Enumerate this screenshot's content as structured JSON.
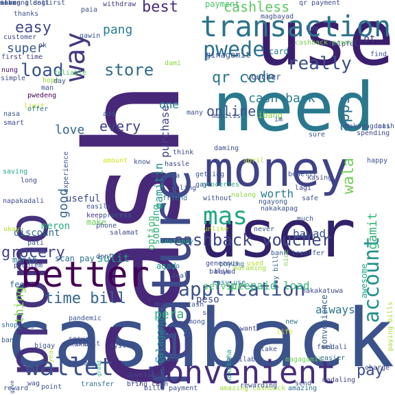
{
  "words": [
    {
      "t": "cashback",
      "c": "#3b528b"
    },
    {
      "t": "cash",
      "c": "#482878"
    },
    {
      "t": "use",
      "c": "#3b1e6e"
    },
    {
      "t": "need",
      "c": "#2a788e"
    },
    {
      "t": "money",
      "c": "#404387"
    },
    {
      "t": "user",
      "c": "#31206a"
    },
    {
      "t": "feature",
      "c": "#3e4a89"
    },
    {
      "t": "promo",
      "c": "#46327e"
    },
    {
      "t": "mas",
      "c": "#22a884"
    },
    {
      "t": "transaction",
      "c": "#2c728e"
    },
    {
      "t": "better",
      "c": "#440154"
    },
    {
      "t": "convenient",
      "c": "#472d7b"
    },
    {
      "t": "wallet",
      "c": "#3b528b"
    },
    {
      "t": "account",
      "c": "#21918c"
    },
    {
      "t": "application",
      "c": "#3b518b"
    },
    {
      "t": "cashback voucher",
      "c": "#3f4788"
    },
    {
      "t": "pwede",
      "c": "#2d708e"
    },
    {
      "t": "way",
      "c": "#453781"
    },
    {
      "t": "load",
      "c": "#3a538b"
    },
    {
      "t": "store",
      "c": "#306a8e"
    },
    {
      "t": "qr code",
      "c": "#2a768e"
    },
    {
      "t": "online",
      "c": "#3c508b"
    },
    {
      "t": "cash back",
      "c": "#297b8e"
    },
    {
      "t": "really",
      "c": "#3d4e8a"
    },
    {
      "t": "time bill",
      "c": "#33638d"
    },
    {
      "t": "grocery",
      "c": "#404688"
    },
    {
      "t": "every",
      "c": "#414487"
    },
    {
      "t": "best",
      "c": "#472c7a"
    },
    {
      "t": "easy",
      "c": "#3f4889"
    },
    {
      "t": "super",
      "c": "#39568c"
    },
    {
      "t": "pang",
      "c": "#287d8e"
    },
    {
      "t": "cashless",
      "c": "#5ec962"
    },
    {
      "t": "love",
      "c": "#32648e"
    },
    {
      "t": "good",
      "c": "#32658e"
    },
    {
      "t": "wala",
      "c": "#70cf57"
    },
    {
      "t": "apps",
      "c": "#2e6f8e"
    },
    {
      "t": "gamitin",
      "c": "#20928c"
    },
    {
      "t": "purchase",
      "c": "#404588"
    },
    {
      "t": "sobrang",
      "c": "#2ab07f"
    },
    {
      "t": "pera",
      "c": "#2fb47c"
    },
    {
      "t": "one",
      "c": "#26828e"
    },
    {
      "t": "worth",
      "c": "#287c8e"
    },
    {
      "t": "gamit",
      "c": "#31b57b"
    },
    {
      "t": "sulit",
      "c": "#1fa088"
    },
    {
      "t": "option",
      "c": "#40bd72"
    },
    {
      "t": "useful",
      "c": "#3e4c8a"
    },
    {
      "t": "thing",
      "c": "#7fd34e"
    },
    {
      "t": "discount",
      "c": "#31678e"
    },
    {
      "t": "meron",
      "c": "#29af7f"
    },
    {
      "t": "month",
      "c": "#2b758e"
    },
    {
      "t": "scan pay",
      "c": "#2e6e8e"
    },
    {
      "t": "fee",
      "c": "#31668e"
    },
    {
      "t": "agad",
      "c": "#1f9a8a"
    },
    {
      "t": "prepaid load",
      "c": "#35b779"
    },
    {
      "t": "always",
      "c": "#2c738e"
    },
    {
      "t": "pay",
      "c": "#3e4989"
    },
    {
      "t": "peso",
      "c": "#3f4889"
    },
    {
      "t": "talagang",
      "c": "#23888e"
    },
    {
      "t": "convenience",
      "c": "#355f8d"
    },
    {
      "t": "bayad",
      "c": "#3b528b"
    },
    {
      "t": "awesome",
      "c": "#20a486"
    },
    {
      "t": "paying bills",
      "c": "#a8db34"
    },
    {
      "t": "service",
      "c": "#52c569"
    },
    {
      "t": "ibang",
      "c": "#8bd646"
    },
    {
      "t": "card",
      "c": "#287c8e"
    },
    {
      "t": "voucher",
      "c": "#3e4989"
    },
    {
      "t": "ginagamit",
      "c": "#39568c"
    },
    {
      "t": "lot",
      "c": "#472f7d"
    },
    {
      "t": "payment",
      "c": "#4ac16d"
    },
    {
      "t": "qr payment",
      "c": "#3e4a89"
    },
    {
      "t": "withdraw",
      "c": "#453882"
    },
    {
      "t": "thanks",
      "c": "#3c4f8a"
    },
    {
      "t": "ok",
      "c": "#404387"
    },
    {
      "t": "dami",
      "c": "#8bd646"
    },
    {
      "t": "first time",
      "c": "#453882"
    },
    {
      "t": "nung",
      "c": "#471063"
    },
    {
      "t": "hope",
      "c": "#93d741"
    },
    {
      "t": "man",
      "c": "#3d4d8a"
    },
    {
      "t": "pwedeng",
      "c": "#440154"
    },
    {
      "t": "limit",
      "c": "#bddf26"
    },
    {
      "t": "offer",
      "c": "#2e6d8e"
    },
    {
      "t": "experience",
      "c": "#3b528b"
    },
    {
      "t": "saving",
      "c": "#20a386"
    },
    {
      "t": "long",
      "c": "#3e4a89"
    },
    {
      "t": "napakadali",
      "c": "#3d4e8a"
    },
    {
      "t": "instapay",
      "c": "#26ad81"
    },
    {
      "t": "make",
      "c": "#6ccd5a"
    },
    {
      "t": "keep",
      "c": "#463480"
    },
    {
      "t": "easily",
      "c": "#3b528b"
    },
    {
      "t": "process",
      "c": "#33638d"
    },
    {
      "t": "friend",
      "c": "#2d718e"
    },
    {
      "t": "without",
      "c": "#3d4e8a"
    },
    {
      "t": "nalang",
      "c": "#90d743"
    },
    {
      "t": "unlike",
      "c": "#b2dd2d"
    },
    {
      "t": "much",
      "c": "#3c508b"
    },
    {
      "t": "safe",
      "c": "#3d4d8a"
    },
    {
      "t": "lagi",
      "c": "#424186"
    },
    {
      "t": "bank transfer",
      "c": "#39568c"
    },
    {
      "t": "paying",
      "c": "#2d708e"
    },
    {
      "t": "go",
      "c": "#2c728e"
    },
    {
      "t": "deal",
      "c": "#3b528b"
    },
    {
      "t": "bayad",
      "c": "#3e4a89"
    },
    {
      "t": "balik",
      "c": "#3f4788"
    },
    {
      "t": "pay bill",
      "c": "#32648e"
    },
    {
      "t": "nice",
      "c": "#7ad151"
    },
    {
      "t": "easy use",
      "c": "#2a788e"
    },
    {
      "t": "problem",
      "c": "#3e4a89"
    },
    {
      "t": "shopping",
      "c": "#2e6f8e"
    },
    {
      "t": "bank",
      "c": "#38588c"
    },
    {
      "t": "year",
      "c": "#b5de2b"
    },
    {
      "t": "want",
      "c": "#424186"
    },
    {
      "t": "life",
      "c": "#d8e219"
    },
    {
      "t": "new",
      "c": "#2c728e"
    },
    {
      "t": "take",
      "c": "#3b528b"
    },
    {
      "t": "feel",
      "c": "#3d4d8a"
    },
    {
      "t": "easier",
      "c": "#31678e"
    },
    {
      "t": "charge",
      "c": "#3f4889"
    },
    {
      "t": "makukuha",
      "c": "#3e4989"
    },
    {
      "t": "ginamit",
      "c": "#3d4e8a"
    },
    {
      "t": "makapag cash",
      "c": "#3b528b"
    },
    {
      "t": "rebate",
      "c": "#31678e"
    },
    {
      "t": "available",
      "c": "#3d4e8a"
    },
    {
      "t": "magagamit",
      "c": "#6ece58"
    },
    {
      "t": "madali",
      "c": "#3b528b"
    },
    {
      "t": "madaling",
      "c": "#424186"
    },
    {
      "t": "wag",
      "c": "#3e4a89"
    },
    {
      "t": "transfer",
      "c": "#2d708e"
    },
    {
      "t": "bring cash",
      "c": "#424186"
    },
    {
      "t": "download",
      "c": "#3e4989"
    },
    {
      "t": "try",
      "c": "#3d4e8a"
    },
    {
      "t": "reward",
      "c": "#3b528b"
    },
    {
      "t": "give",
      "c": "#3b528b"
    },
    {
      "t": "bills payment",
      "c": "#3e4a89"
    },
    {
      "t": "amazing cashback",
      "c": "#9fda3a"
    },
    {
      "t": "rewarding",
      "c": "#3e4a89"
    },
    {
      "t": "amazing",
      "c": "#2e6e8e"
    },
    {
      "t": "send",
      "c": "#3b528b"
    },
    {
      "t": "nakakuha",
      "c": "#1f9e89"
    },
    {
      "t": "great",
      "c": "#24aa83"
    },
    {
      "t": "credit",
      "c": "#3b528b"
    },
    {
      "t": "secure",
      "c": "#3f4788"
    },
    {
      "t": "mong",
      "c": "#3b528b"
    },
    {
      "t": "say",
      "c": "#3e4a89"
    },
    {
      "t": "maraming",
      "c": "#a0da39"
    },
    {
      "t": "generous",
      "c": "#3f4889"
    },
    {
      "t": "used",
      "c": "#b5de2b"
    },
    {
      "t": "never",
      "c": "#3b528b"
    },
    {
      "t": "ngayong",
      "c": "#3b528b"
    },
    {
      "t": "groceries",
      "c": "#2fb47c"
    },
    {
      "t": "benefit",
      "c": "#3b528b"
    },
    {
      "t": "kasing",
      "c": "#3e4a89"
    },
    {
      "t": "find",
      "c": "#3b528b"
    },
    {
      "t": "cashback promo",
      "c": "#7ad151"
    },
    {
      "t": "helpful",
      "c": "#3e4a89"
    },
    {
      "t": "magbayad",
      "c": "#3b528b"
    },
    {
      "t": "buy",
      "c": "#3b528b"
    },
    {
      "t": "paia",
      "c": "#3e4a89"
    },
    {
      "t": "first",
      "c": "#3b528b"
    },
    {
      "t": "customer",
      "c": "#3e4a89"
    },
    {
      "t": "gawin",
      "c": "#3b528b"
    },
    {
      "t": "reliable",
      "c": "#52c569"
    },
    {
      "t": "day",
      "c": "#3b528b"
    },
    {
      "t": "simple",
      "c": "#3e4a89"
    },
    {
      "t": "nasa",
      "c": "#3b528b"
    },
    {
      "t": "add",
      "c": "#3b528b"
    },
    {
      "t": "amount",
      "c": "#d2e21b"
    },
    {
      "t": "know",
      "c": "#3b528b"
    },
    {
      "t": "think",
      "c": "#3e4a89"
    },
    {
      "t": "maganda",
      "c": "#3b528b"
    },
    {
      "t": "daming",
      "c": "#3e4a89"
    },
    {
      "t": "many",
      "c": "#3b528b"
    },
    {
      "t": "mabilis",
      "c": "#3b528b"
    },
    {
      "t": "im",
      "c": "#3e4a89"
    },
    {
      "t": "april",
      "c": "#b5de2b"
    },
    {
      "t": "sure",
      "c": "#3b528b"
    },
    {
      "t": "dati",
      "c": "#3e4a89"
    },
    {
      "t": "makapag cash",
      "c": "#3b528b"
    },
    {
      "t": "spending",
      "c": "#3e4a89"
    },
    {
      "t": "happy",
      "c": "#3b528b"
    },
    {
      "t": "galing",
      "c": "#3e4a89"
    },
    {
      "t": "gaya",
      "c": "#3b528b"
    },
    {
      "t": "getting",
      "c": "#3b528b"
    },
    {
      "t": "hassle",
      "c": "#3e4a89"
    },
    {
      "t": "pati",
      "c": "#3b528b"
    },
    {
      "t": "dont",
      "c": "#3e4a89"
    },
    {
      "t": "nakakapag",
      "c": "#3b528b"
    },
    {
      "t": "phone",
      "c": "#3b528b"
    },
    {
      "t": "salamat",
      "c": "#3e4a89"
    },
    {
      "t": "pandemic",
      "c": "#3b528b"
    },
    {
      "t": "nakakatuwa",
      "c": "#3e4a89"
    },
    {
      "t": "ukay",
      "c": "#b5de2b"
    },
    {
      "t": "bigay",
      "c": "#3b528b"
    },
    {
      "t": "system",
      "c": "#3e4a89"
    },
    {
      "t": "point",
      "c": "#3b528b"
    },
    {
      "t": "smart",
      "c": "#3e4a89"
    },
    {
      "t": "sobrang dali",
      "c": "#3b528b"
    },
    {
      "t": "ilang",
      "c": "#3e4a89"
    },
    {
      "t": "save",
      "c": "#3b528b"
    },
    {
      "t": "meron ilang",
      "c": "#3e4a89"
    },
    {
      "t": "alam",
      "c": "#3b528b"
    }
  ]
}
